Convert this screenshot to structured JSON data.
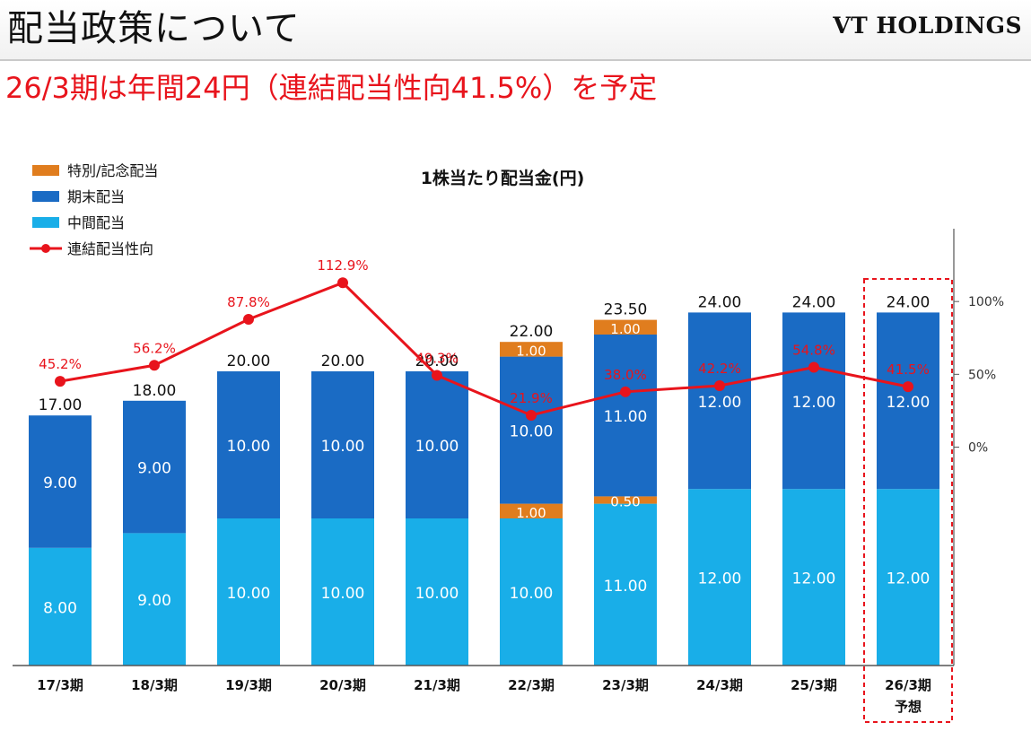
{
  "header": {
    "title": "配当政策について",
    "company": "VT HOLDINGS"
  },
  "subtitle": "26/3期は年間24円（連結配当性向41.5%）を予定",
  "colors": {
    "special": "#e07d1e",
    "year_end": "#1a6bc4",
    "interim": "#19aee8",
    "payout": "#e8141c",
    "text": "#111111"
  },
  "chart_data": {
    "type": "bar",
    "stacked": true,
    "title": "1株当たり配当金(円)",
    "categories": [
      "17/3期",
      "18/3期",
      "19/3期",
      "20/3期",
      "21/3期",
      "22/3期",
      "23/3期",
      "24/3期",
      "25/3期",
      "26/3期"
    ],
    "category_notes": [
      "",
      "",
      "",
      "",
      "",
      "",
      "",
      "",
      "",
      "予想"
    ],
    "highlighted_category": "26/3期",
    "ylabel": "",
    "ylim": [
      0,
      30
    ],
    "y2_ticks": [
      "100%",
      "50%",
      "0%"
    ],
    "y2lim": [
      -150,
      150
    ],
    "legend_position": "top-left",
    "grid": false,
    "series": [
      {
        "name": "中間配当",
        "kind": "bar",
        "color": "#19aee8",
        "values": [
          8,
          9,
          10,
          10,
          10,
          10,
          11,
          12,
          12,
          12
        ],
        "labels": [
          "8.00",
          "9.00",
          "10.00",
          "10.00",
          "10.00",
          "10.00",
          "11.00",
          "12.00",
          "12.00",
          "12.00"
        ]
      },
      {
        "name": "特別/記念配当 (中間)",
        "legend": false,
        "kind": "bar",
        "color": "#e07d1e",
        "values": [
          0,
          0,
          0,
          0,
          0,
          1,
          0.5,
          0,
          0,
          0
        ],
        "labels": [
          "",
          "",
          "",
          "",
          "",
          "1.00",
          "0.50",
          "",
          "",
          ""
        ]
      },
      {
        "name": "期末配当",
        "kind": "bar",
        "color": "#1a6bc4",
        "values": [
          9,
          9,
          10,
          10,
          10,
          10,
          11,
          12,
          12,
          12
        ],
        "labels": [
          "9.00",
          "9.00",
          "10.00",
          "10.00",
          "10.00",
          "10.00",
          "11.00",
          "12.00",
          "12.00",
          "12.00"
        ]
      },
      {
        "name": "特別/記念配当",
        "kind": "bar",
        "color": "#e07d1e",
        "values": [
          0,
          0,
          0,
          0,
          0,
          1,
          1,
          0,
          0,
          0
        ],
        "labels": [
          "",
          "",
          "",
          "",
          "",
          "1.00",
          "1.00",
          "",
          "",
          ""
        ]
      },
      {
        "name": "連結配当性向",
        "kind": "line",
        "axis": "right",
        "color": "#e8141c",
        "values": [
          45.2,
          56.2,
          87.8,
          112.9,
          49.3,
          21.9,
          38.0,
          42.2,
          54.8,
          41.5
        ],
        "labels": [
          "45.2%",
          "56.2%",
          "87.8%",
          "112.9%",
          "49.3%",
          "21.9%",
          "38.0%",
          "42.2%",
          "54.8%",
          "41.5%"
        ]
      }
    ],
    "totals": [
      "17.00",
      "18.00",
      "20.00",
      "20.00",
      "20.00",
      "22.00",
      "23.50",
      "24.00",
      "24.00",
      "24.00"
    ],
    "legend": [
      {
        "label": "特別/記念配当",
        "color": "#e07d1e",
        "kind": "bar"
      },
      {
        "label": "期末配当",
        "color": "#1a6bc4",
        "kind": "bar"
      },
      {
        "label": "中間配当",
        "color": "#19aee8",
        "kind": "bar"
      },
      {
        "label": "連結配当性向",
        "color": "#e8141c",
        "kind": "line"
      }
    ]
  }
}
